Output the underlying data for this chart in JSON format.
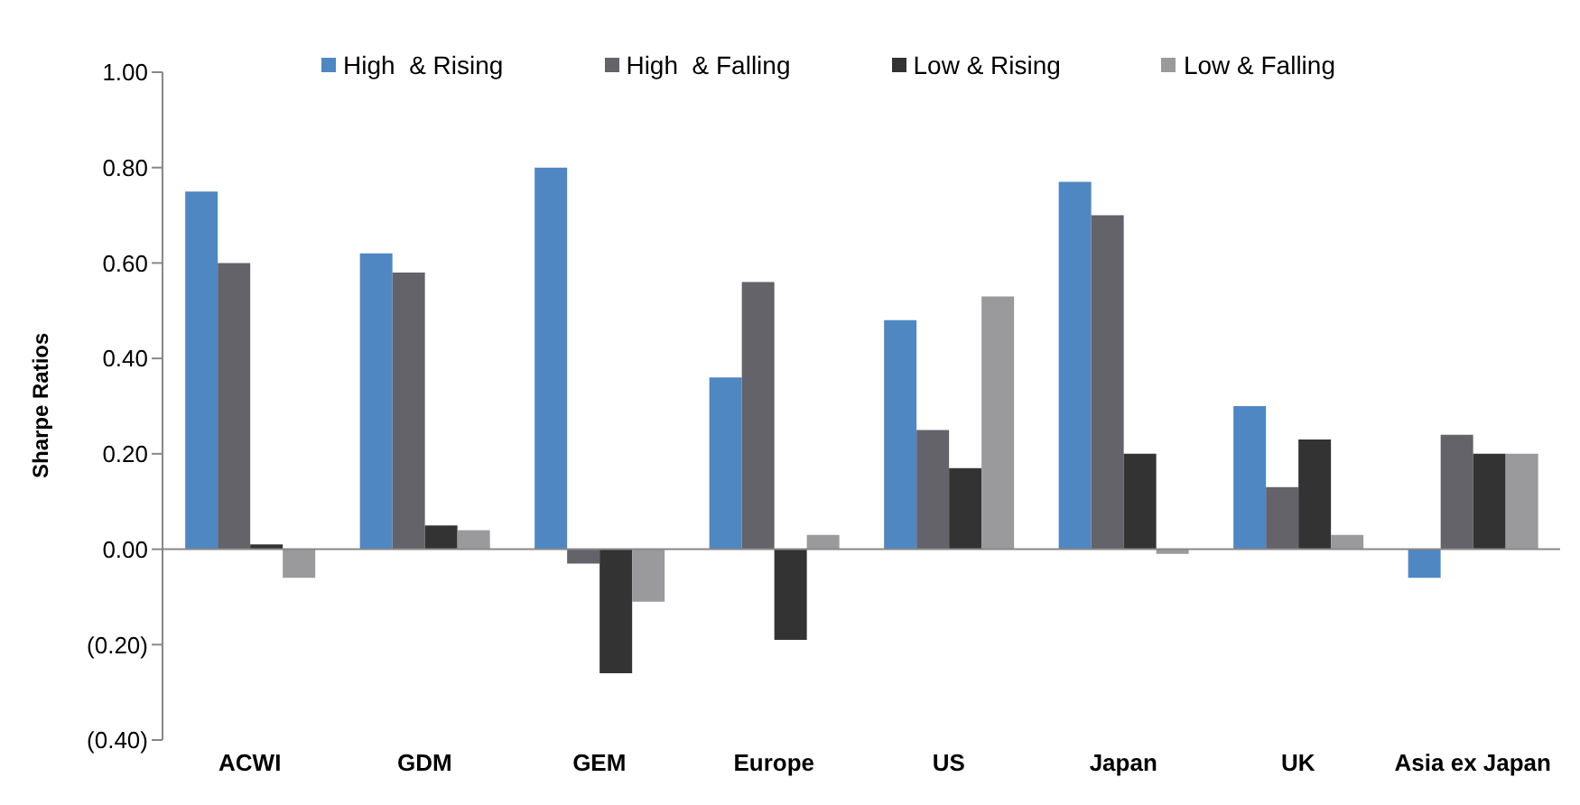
{
  "chart_data": {
    "type": "bar",
    "ylabel": "Sharpe Ratios",
    "categories": [
      "ACWI",
      "GDM",
      "GEM",
      "Europe",
      "US",
      "Japan",
      "UK",
      "Asia ex Japan"
    ],
    "series": [
      {
        "name": "High  & Rising",
        "color": "#4f87c2",
        "values": [
          0.75,
          0.62,
          0.8,
          0.36,
          0.48,
          0.77,
          0.3,
          -0.06
        ]
      },
      {
        "name": "High  & Falling",
        "color": "#646369",
        "values": [
          0.6,
          0.58,
          -0.03,
          0.56,
          0.25,
          0.7,
          0.13,
          0.24
        ]
      },
      {
        "name": "Low & Rising",
        "color": "#333333",
        "values": [
          0.01,
          0.05,
          -0.26,
          -0.19,
          0.17,
          0.2,
          0.23,
          0.2
        ]
      },
      {
        "name": "Low & Falling",
        "color": "#9a999c",
        "values": [
          -0.06,
          0.04,
          -0.11,
          0.03,
          0.53,
          -0.01,
          0.03,
          0.2
        ]
      }
    ],
    "ylim": [
      -0.4,
      1.0
    ],
    "yticks": [
      {
        "value": -0.4,
        "label": "(0.40)"
      },
      {
        "value": -0.2,
        "label": "(0.20)"
      },
      {
        "value": 0,
        "label": "0.00"
      },
      {
        "value": 0.2,
        "label": "0.20"
      },
      {
        "value": 0.4,
        "label": "0.40"
      },
      {
        "value": 0.6,
        "label": "0.60"
      },
      {
        "value": 0.8,
        "label": "0.80"
      },
      {
        "value": 1.0,
        "label": "1.00"
      }
    ],
    "legend": "top"
  }
}
